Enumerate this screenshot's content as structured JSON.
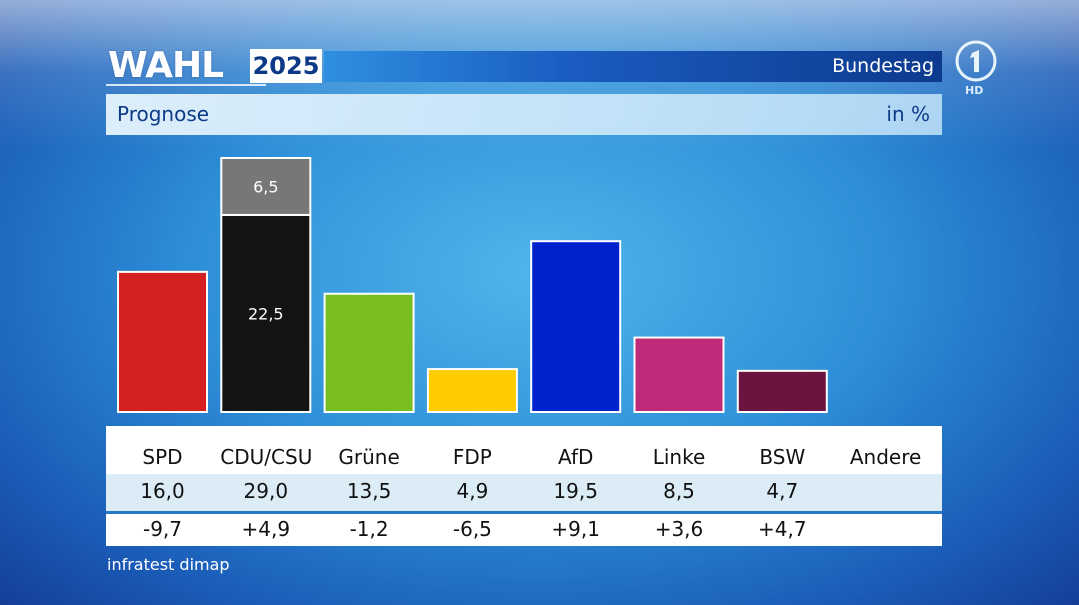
{
  "header": {
    "brand": "WAHL",
    "year": "2025",
    "bar_text": "Bundestag",
    "hd_badge": "HD"
  },
  "subheader": {
    "title": "Prognose",
    "unit": "in %"
  },
  "source": "infratest dimap",
  "colors": {
    "background": "#2e8fd8",
    "brand_blue": "#0d3a86"
  },
  "chart_data": {
    "type": "bar",
    "title": "Prognose",
    "ylabel": "in %",
    "ylim": [
      0,
      29.0
    ],
    "categories": [
      "SPD",
      "CDU/CSU",
      "Grüne",
      "FDP",
      "AfD",
      "Linke",
      "BSW",
      "Andere"
    ],
    "values": [
      16.0,
      29.0,
      13.5,
      4.9,
      19.5,
      8.5,
      4.7,
      null
    ],
    "value_labels": [
      "16,0",
      "29,0",
      "13,5",
      "4,9",
      "19,5",
      "8,5",
      "4,7",
      ""
    ],
    "changes": [
      "-9,7",
      "+4,9",
      "-1,2",
      "-6,5",
      "+9,1",
      "+3,6",
      "+4,7",
      ""
    ],
    "colors": [
      "#d42020",
      "#141414",
      "#78be20",
      "#ffcc00",
      "#0022cc",
      "#c02a78",
      "#6b1440",
      "#7a7a7a"
    ],
    "stacked": {
      "category": "CDU/CSU",
      "segments": [
        {
          "name": "CDU",
          "value": 22.5,
          "label": "22,5",
          "color": "#141414"
        },
        {
          "name": "CSU",
          "value": 6.5,
          "label": "6,5",
          "color": "#777777"
        }
      ]
    }
  }
}
